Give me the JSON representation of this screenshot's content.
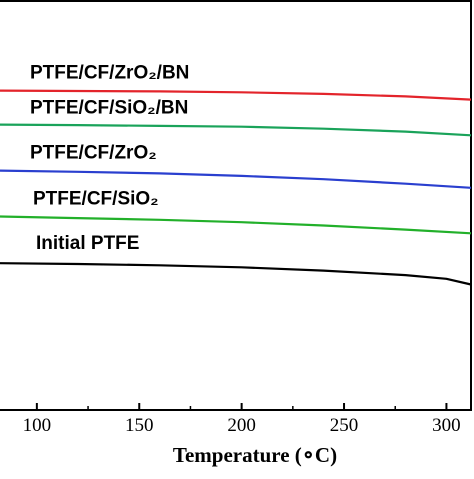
{
  "chart_data": {
    "type": "line",
    "xlabel": "Temperature (∘C)",
    "x_ticks": [
      100,
      150,
      200,
      250,
      300
    ],
    "xlim": [
      82,
      312
    ],
    "ylim": [
      0,
      100
    ],
    "grid": false,
    "legend_placement": "inline labels above each curve",
    "series": [
      {
        "name": "PTFE/CF/ZrO₂/BN",
        "color": "#e3242b",
        "x": [
          82,
          120,
          160,
          200,
          240,
          280,
          312
        ],
        "y": [
          77.9,
          77.8,
          77.7,
          77.5,
          77.1,
          76.5,
          75.7
        ]
      },
      {
        "name": "PTFE/CF/SiO₂/BN",
        "color": "#1aa35a",
        "x": [
          82,
          120,
          160,
          200,
          240,
          280,
          312
        ],
        "y": [
          69.6,
          69.5,
          69.3,
          69.1,
          68.6,
          67.9,
          67.0
        ]
      },
      {
        "name": "PTFE/CF/ZrO₂",
        "color": "#2a3fcf",
        "x": [
          82,
          120,
          160,
          200,
          240,
          280,
          312
        ],
        "y": [
          58.4,
          58.1,
          57.7,
          57.1,
          56.3,
          55.2,
          54.2
        ]
      },
      {
        "name": "PTFE/CF/SiO₂",
        "color": "#22b02a",
        "x": [
          82,
          120,
          160,
          200,
          240,
          280,
          312
        ],
        "y": [
          47.2,
          46.8,
          46.4,
          45.8,
          45.0,
          44.0,
          43.1
        ]
      },
      {
        "name": "Initial PTFE",
        "color": "#000000",
        "x": [
          82,
          120,
          160,
          200,
          240,
          280,
          300,
          312
        ],
        "y": [
          35.8,
          35.6,
          35.3,
          34.8,
          34.0,
          32.9,
          32.0,
          30.6
        ]
      }
    ]
  }
}
